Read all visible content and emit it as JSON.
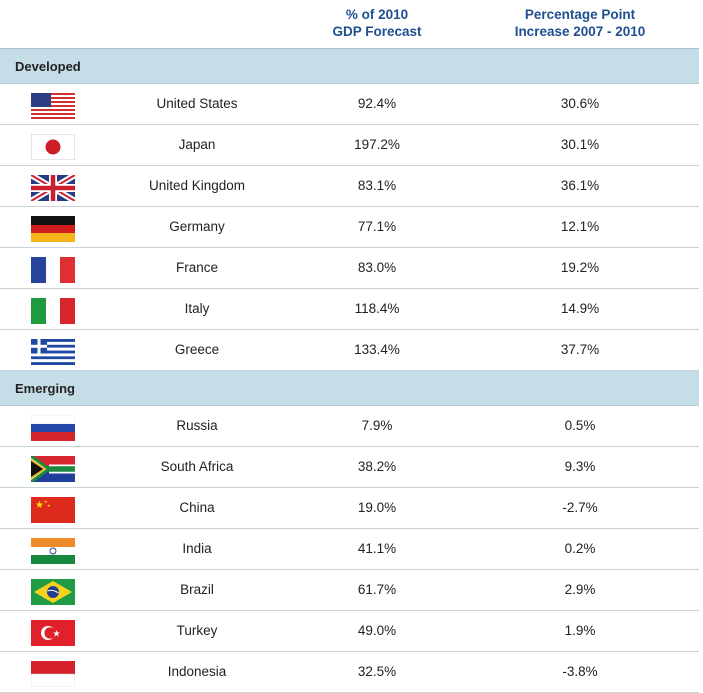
{
  "header": {
    "col_gdp": "% of 2010 GDP Forecast",
    "col_gdp_line1": "% of 2010",
    "col_gdp_line2": "GDP Forecast",
    "col_inc": "Percentage Point Increase 2007 - 2010",
    "col_inc_line1": "Percentage Point",
    "col_inc_line2": "Increase 2007 - 2010"
  },
  "chart_data": {
    "type": "table",
    "columns": [
      "",
      "% of 2010 GDP Forecast",
      "Percentage Point Increase 2007 - 2010"
    ],
    "groups": [
      {
        "name": "Developed",
        "rows": [
          {
            "country": "United States",
            "flag": "us-flag-icon",
            "gdp": "92.4%",
            "increase": "30.6%"
          },
          {
            "country": "Japan",
            "flag": "japan-flag-icon",
            "gdp": "197.2%",
            "increase": "30.1%"
          },
          {
            "country": "United Kingdom",
            "flag": "uk-flag-icon",
            "gdp": "83.1%",
            "increase": "36.1%"
          },
          {
            "country": "Germany",
            "flag": "germany-flag-icon",
            "gdp": "77.1%",
            "increase": "12.1%"
          },
          {
            "country": "France",
            "flag": "france-flag-icon",
            "gdp": "83.0%",
            "increase": "19.2%"
          },
          {
            "country": "Italy",
            "flag": "italy-flag-icon",
            "gdp": "118.4%",
            "increase": "14.9%"
          },
          {
            "country": "Greece",
            "flag": "greece-flag-icon",
            "gdp": "133.4%",
            "increase": "37.7%"
          }
        ]
      },
      {
        "name": "Emerging",
        "rows": [
          {
            "country": "Russia",
            "flag": "russia-flag-icon",
            "gdp": "7.9%",
            "increase": "0.5%"
          },
          {
            "country": "South Africa",
            "flag": "south-africa-flag-icon",
            "gdp": "38.2%",
            "increase": "9.3%"
          },
          {
            "country": "China",
            "flag": "china-flag-icon",
            "gdp": "19.0%",
            "increase": "-2.7%"
          },
          {
            "country": "India",
            "flag": "india-flag-icon",
            "gdp": "41.1%",
            "increase": "0.2%"
          },
          {
            "country": "Brazil",
            "flag": "brazil-flag-icon",
            "gdp": "61.7%",
            "increase": "2.9%"
          },
          {
            "country": "Turkey",
            "flag": "turkey-flag-icon",
            "gdp": "49.0%",
            "increase": "1.9%"
          },
          {
            "country": "Indonesia",
            "flag": "indonesia-flag-icon",
            "gdp": "32.5%",
            "increase": "-3.8%"
          }
        ]
      }
    ]
  }
}
